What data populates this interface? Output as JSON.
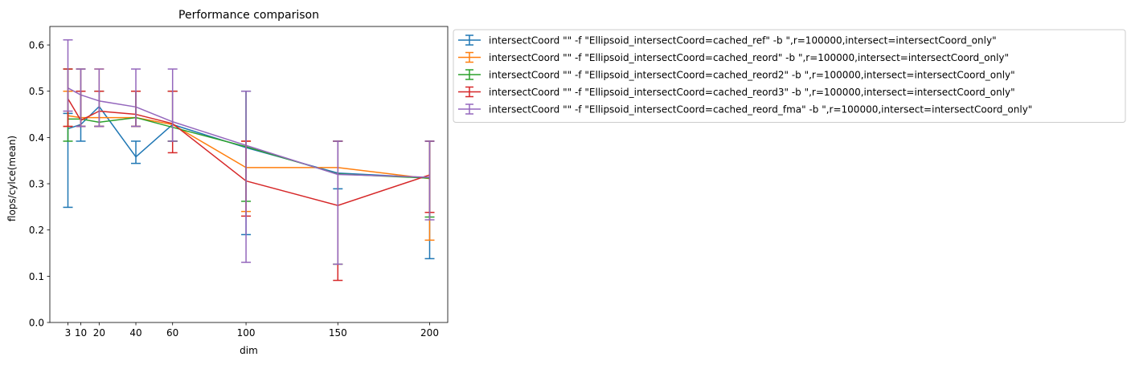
{
  "chart_data": {
    "type": "line",
    "title": "Performance comparison",
    "xlabel": "dim",
    "ylabel": "flops/cylce(mean)",
    "x": [
      3,
      10,
      20,
      40,
      60,
      100,
      150,
      200
    ],
    "xticks": [
      3,
      10,
      20,
      40,
      60,
      100,
      150,
      200
    ],
    "xlim": [
      -6.85,
      209.85
    ],
    "ylim": [
      0.0,
      0.64
    ],
    "yticks": [
      0.0,
      0.1,
      0.2,
      0.3,
      0.4,
      0.5,
      0.6
    ],
    "ytick_labels": [
      "0.0",
      "0.1",
      "0.2",
      "0.3",
      "0.4",
      "0.5",
      "0.6"
    ],
    "grid": false,
    "legend_position": "outside-upper-right",
    "series": [
      {
        "name": "intersectCoord \"\" -f \"Ellipsoid_intersectCoord=cached_ref\" -b \",r=100000,intersect=intersectCoord_only\"",
        "color": "#1f77b4",
        "values": [
          0.419,
          0.428,
          0.467,
          0.358,
          0.428,
          0.378,
          0.323,
          0.313
        ],
        "err_low": [
          0.249,
          0.392,
          0.424,
          0.344,
          0.392,
          0.19,
          0.289,
          0.138
        ],
        "err_high": [
          0.452,
          0.548,
          0.5,
          0.392,
          0.5,
          0.5,
          0.392,
          0.392
        ]
      },
      {
        "name": "intersectCoord \"\" -f \"Ellipsoid_intersectCoord=cached_reord\" -b \",r=100000,intersect=intersectCoord_only\"",
        "color": "#ff7f0e",
        "values": [
          0.447,
          0.443,
          0.443,
          0.443,
          0.428,
          0.335,
          0.335,
          0.311
        ],
        "err_low": [
          0.424,
          0.424,
          0.424,
          0.424,
          0.392,
          0.24,
          0.126,
          0.178
        ],
        "err_high": [
          0.5,
          0.548,
          0.548,
          0.5,
          0.5,
          0.392,
          0.392,
          0.392
        ]
      },
      {
        "name": "intersectCoord \"\" -f \"Ellipsoid_intersectCoord=cached_reord2\" -b \",r=100000,intersect=intersectCoord_only\"",
        "color": "#2ca02c",
        "values": [
          0.44,
          0.44,
          0.433,
          0.443,
          0.422,
          0.38,
          0.321,
          0.312
        ],
        "err_low": [
          0.392,
          0.424,
          0.424,
          0.424,
          0.392,
          0.262,
          0.126,
          0.228
        ],
        "err_high": [
          0.548,
          0.5,
          0.5,
          0.5,
          0.5,
          0.5,
          0.392,
          0.392
        ]
      },
      {
        "name": "intersectCoord \"\" -f \"Ellipsoid_intersectCoord=cached_reord3\" -b \",r=100000,intersect=intersectCoord_only\"",
        "color": "#d62728",
        "values": [
          0.484,
          0.437,
          0.457,
          0.45,
          0.43,
          0.306,
          0.253,
          0.319
        ],
        "err_low": [
          0.424,
          0.424,
          0.424,
          0.424,
          0.367,
          0.23,
          0.091,
          0.238
        ],
        "err_high": [
          0.548,
          0.5,
          0.5,
          0.5,
          0.5,
          0.392,
          0.392,
          0.392
        ]
      },
      {
        "name": "intersectCoord \"\" -f \"Ellipsoid_intersectCoord=cached_reord_fma\" -b \",r=100000,intersect=intersectCoord_only\"",
        "color": "#9467bd",
        "values": [
          0.507,
          0.492,
          0.479,
          0.466,
          0.434,
          0.383,
          0.32,
          0.314
        ],
        "err_low": [
          0.457,
          0.424,
          0.424,
          0.424,
          0.392,
          0.13,
          0.126,
          0.222
        ],
        "err_high": [
          0.611,
          0.548,
          0.548,
          0.548,
          0.548,
          0.5,
          0.392,
          0.392
        ]
      }
    ]
  }
}
